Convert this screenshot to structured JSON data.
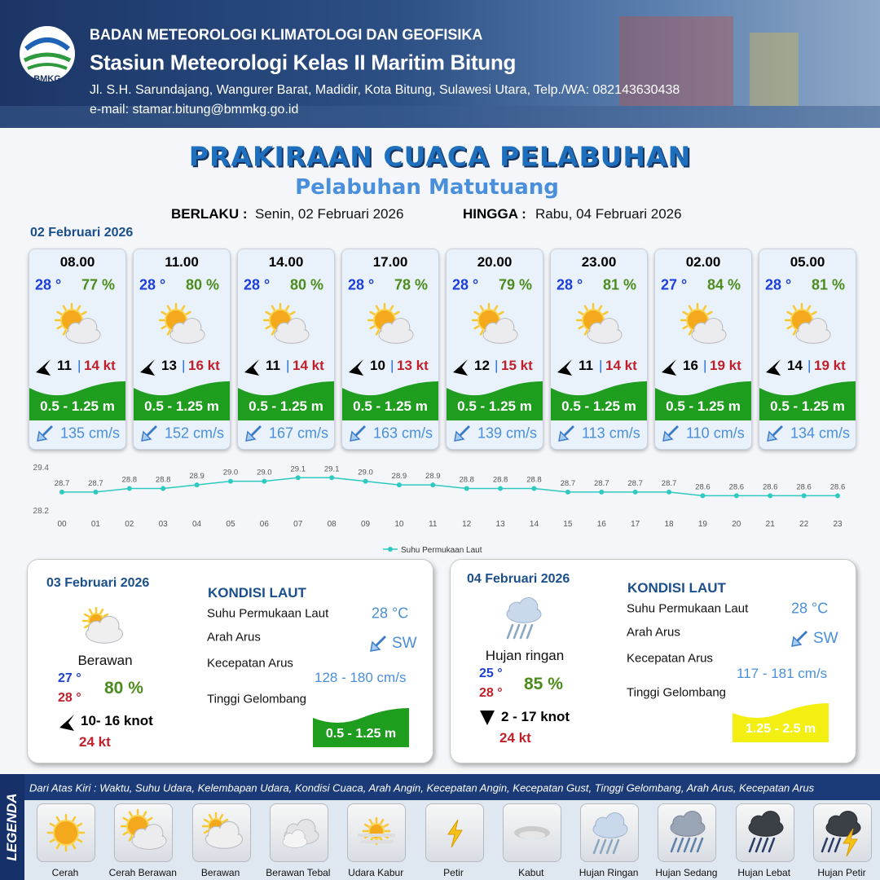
{
  "header": {
    "logo_text": "BMKG",
    "agency": "BADAN METEOROLOGI KLIMATOLOGI DAN GEOFISIKA",
    "station": "Stasiun Meteorologi Kelas II Maritim Bitung",
    "address": "Jl. S.H. Sarundajang, Wangurer Barat, Madidir, Kota Bitung, Sulawesi Utara, Telp./WA: 082143630438",
    "email": "e-mail: stamar.bitung@bmmkg.go.id"
  },
  "title": "PRAKIRAAN CUACA PELABUHAN",
  "subtitle": "Pelabuhan Matutuang",
  "validity": {
    "from_label": "BERLAKU :",
    "from": "Senin, 02 Februari 2026",
    "to_label": "HINGGA :",
    "to": "Rabu, 04 Februari 2026"
  },
  "day1": {
    "date": "02 Februari 2026",
    "forecasts": [
      {
        "time": "08.00",
        "temp": "28 °",
        "humidity": "77 %",
        "wind": "11",
        "gust": "14 kt",
        "wave": "0.5 - 1.25 m",
        "current": "135 cm/s"
      },
      {
        "time": "11.00",
        "temp": "28 °",
        "humidity": "80 %",
        "wind": "13",
        "gust": "16 kt",
        "wave": "0.5 - 1.25 m",
        "current": "152 cm/s"
      },
      {
        "time": "14.00",
        "temp": "28 °",
        "humidity": "80 %",
        "wind": "11",
        "gust": "14 kt",
        "wave": "0.5 - 1.25 m",
        "current": "167 cm/s"
      },
      {
        "time": "17.00",
        "temp": "28 °",
        "humidity": "78 %",
        "wind": "10",
        "gust": "13 kt",
        "wave": "0.5 - 1.25 m",
        "current": "163 cm/s"
      },
      {
        "time": "20.00",
        "temp": "28 °",
        "humidity": "79 %",
        "wind": "12",
        "gust": "15 kt",
        "wave": "0.5 - 1.25 m",
        "current": "139 cm/s"
      },
      {
        "time": "23.00",
        "temp": "28 °",
        "humidity": "81 %",
        "wind": "11",
        "gust": "14 kt",
        "wave": "0.5 - 1.25 m",
        "current": "113 cm/s"
      },
      {
        "time": "02.00",
        "temp": "27 °",
        "humidity": "84 %",
        "wind": "16",
        "gust": "19 kt",
        "wave": "0.5 - 1.25 m",
        "current": "110 cm/s"
      },
      {
        "time": "05.00",
        "temp": "28 °",
        "humidity": "81 %",
        "wind": "14",
        "gust": "19 kt",
        "wave": "0.5 - 1.25 m",
        "current": "134 cm/s"
      }
    ]
  },
  "chart_data": {
    "type": "line",
    "categories": [
      "00",
      "01",
      "02",
      "03",
      "04",
      "05",
      "06",
      "07",
      "08",
      "09",
      "10",
      "11",
      "12",
      "13",
      "14",
      "15",
      "16",
      "17",
      "18",
      "19",
      "20",
      "21",
      "22",
      "23"
    ],
    "series": [
      {
        "name": "Suhu Permukaan Laut",
        "color": "#2ec9c0",
        "values": [
          28.7,
          28.7,
          28.8,
          28.8,
          28.9,
          29.0,
          29.0,
          29.1,
          29.1,
          29.0,
          28.9,
          28.9,
          28.8,
          28.8,
          28.8,
          28.7,
          28.7,
          28.7,
          28.7,
          28.6,
          28.6,
          28.6,
          28.6,
          28.6
        ],
        "value_labels": [
          "28.7",
          "28.7",
          "28.8",
          "28.8",
          "28.9",
          "29.0",
          "29.0",
          "29.1",
          "29.1",
          "29.0",
          "28.9",
          "28.9",
          "28.8",
          "28.8",
          "28.8",
          "28.7",
          "28.7",
          "28.7",
          "28.7",
          "28.6",
          "28.6",
          "28.6",
          "28.6",
          "28.6"
        ]
      }
    ],
    "ylim": [
      28.2,
      29.4
    ],
    "yticks": [
      28.2,
      29.4
    ],
    "legend": "bottom"
  },
  "day2": {
    "date": "03 Februari 2026",
    "weather": "Berawan",
    "temp_min": "27 °",
    "temp_max": "28 °",
    "humidity": "80 %",
    "wind": "10- 16 knot",
    "gust": "24 kt",
    "sea": {
      "title": "KONDISI LAUT",
      "sst_label": "Suhu Permukaan Laut",
      "sst": "28 °C",
      "dir_label": "Arah Arus",
      "dir": "SW",
      "speed_label": "Kecepatan Arus",
      "speed": "128 - 180 cm/s",
      "wave_label": "Tinggi Gelombang",
      "wave": "0.5 - 1.25 m"
    }
  },
  "day3": {
    "date": "04 Februari 2026",
    "weather": "Hujan ringan",
    "temp_min": "25 °",
    "temp_max": "28 °",
    "humidity": "85 %",
    "wind": "2 - 17 knot",
    "gust": "24 kt",
    "sea": {
      "title": "KONDISI LAUT",
      "sst_label": "Suhu Permukaan Laut",
      "sst": "28 °C",
      "dir_label": "Arah Arus",
      "dir": "SW",
      "speed_label": "Kecepatan Arus",
      "speed": "117 - 181 cm/s",
      "wave_label": "Tinggi Gelombang",
      "wave": "1.25 - 2.5 m"
    }
  },
  "legend": {
    "title": "LEGENDA",
    "description": "Dari Atas Kiri : Waktu, Suhu Udara, Kelembapan Udara, Kondisi Cuaca, Arah Angin, Kecepatan Angin, Kecepatan Gust, Tinggi Gelombang, Arah Arus, Kecepatan Arus",
    "items": [
      "Cerah",
      "Cerah Berawan",
      "Berawan",
      "Berawan Tebal",
      "Udara Kabur",
      "Petir",
      "Kabut",
      "Hujan Ringan",
      "Hujan Sedang",
      "Hujan Lebat",
      "Hujan Petir"
    ]
  }
}
